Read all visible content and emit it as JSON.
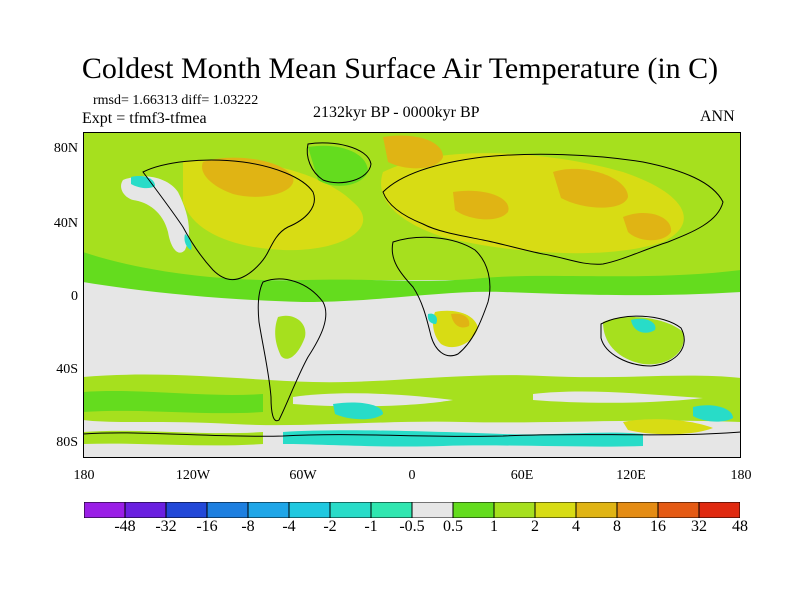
{
  "title": "Coldest Month Mean Surface Air Temperature (in C)",
  "stats": "rmsd= 1.66313 diff= 1.03222",
  "experiment": "Expt = tfmf3-tfmea",
  "period": "2132kyr BP - 0000kyr BP",
  "season": "ANN",
  "axes": {
    "y_ticks": [
      "80N",
      "40N",
      "0",
      "40S",
      "80S"
    ],
    "x_ticks": [
      "180",
      "120W",
      "60W",
      "0",
      "60E",
      "120E",
      "180"
    ]
  },
  "legend": {
    "labels": [
      "-48",
      "-32",
      "-16",
      "-8",
      "-4",
      "-2",
      "-1",
      "-0.5",
      "0.5",
      "1",
      "2",
      "4",
      "8",
      "16",
      "32",
      "48"
    ],
    "colors": [
      "#9a1ee6",
      "#6a20e0",
      "#2248d8",
      "#1d7fe0",
      "#1fa6e8",
      "#1fc8e0",
      "#28dcc8",
      "#30e6b0",
      "#e6e6e6",
      "#64dc1e",
      "#a6e01e",
      "#d8dc14",
      "#e0b414",
      "#e48c14",
      "#e45a14",
      "#e02a10"
    ]
  }
}
